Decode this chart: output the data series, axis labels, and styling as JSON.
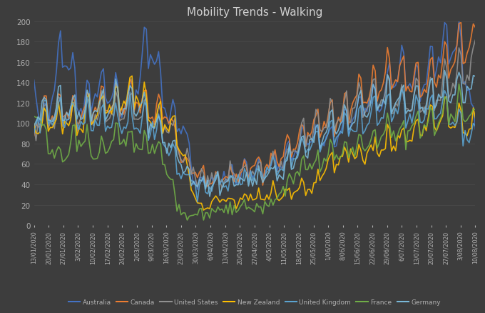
{
  "title": "Mobility Trends - Walking",
  "background_color": "#3d3d3d",
  "plot_bg_color": "#3d3d3d",
  "grid_color": "#555555",
  "text_color": "#b0b0b0",
  "title_color": "#d0d0d0",
  "ylim": [
    0,
    200
  ],
  "yticks": [
    0,
    20,
    40,
    60,
    80,
    100,
    120,
    140,
    160,
    180,
    200
  ],
  "countries": [
    "Australia",
    "Canada",
    "United States",
    "New Zealand",
    "United Kingdom",
    "France",
    "Germany"
  ],
  "colors": {
    "Australia": "#4472c4",
    "Canada": "#ed7d31",
    "United States": "#909090",
    "New Zealand": "#ffc000",
    "United Kingdom": "#5ba3d0",
    "France": "#70ad47",
    "Germany": "#7ab8d8"
  },
  "x_labels": [
    "13/01/2020",
    "20/01/2020",
    "27/01/2020",
    "3/02/2020",
    "10/02/2020",
    "17/02/2020",
    "24/02/2020",
    "2/03/2020",
    "9/03/2020",
    "16/03/2020",
    "23/03/2020",
    "30/03/2020",
    "6/04/2020",
    "13/04/2020",
    "20/04/2020",
    "27/04/2020",
    "4/05/2020",
    "11/05/2020",
    "18/05/2020",
    "25/05/2020",
    "1/06/2020",
    "8/06/2020",
    "15/06/2020",
    "22/06/2020",
    "29/06/2020",
    "6/07/2020",
    "13/07/2020",
    "20/07/2020",
    "27/07/2020",
    "3/08/2020",
    "10/08/2020"
  ],
  "n_labels": 31,
  "series_weekly": {
    "Australia": [
      158,
      112,
      167,
      122,
      125,
      130,
      115,
      135,
      168,
      108,
      98,
      42,
      44,
      46,
      50,
      52,
      56,
      65,
      78,
      85,
      82,
      92,
      112,
      118,
      128,
      148,
      132,
      152,
      172,
      162,
      82
    ],
    "Canada": [
      100,
      108,
      112,
      106,
      116,
      118,
      116,
      122,
      108,
      106,
      68,
      48,
      44,
      46,
      52,
      56,
      60,
      70,
      82,
      95,
      102,
      106,
      122,
      132,
      144,
      142,
      136,
      142,
      156,
      166,
      174
    ],
    "United States": [
      100,
      104,
      106,
      104,
      106,
      110,
      112,
      108,
      102,
      94,
      72,
      46,
      46,
      48,
      50,
      52,
      54,
      64,
      80,
      94,
      100,
      108,
      116,
      120,
      122,
      116,
      118,
      124,
      136,
      144,
      154
    ],
    "New Zealand": [
      100,
      100,
      100,
      100,
      108,
      114,
      122,
      128,
      106,
      100,
      75,
      25,
      22,
      22,
      24,
      27,
      30,
      32,
      36,
      38,
      58,
      64,
      66,
      72,
      78,
      82,
      88,
      98,
      102,
      98,
      92
    ],
    "United Kingdom": [
      100,
      104,
      106,
      100,
      100,
      100,
      100,
      102,
      95,
      78,
      52,
      38,
      38,
      40,
      44,
      48,
      52,
      58,
      70,
      80,
      88,
      92,
      98,
      104,
      110,
      112,
      108,
      108,
      110,
      98,
      82
    ],
    "France": [
      122,
      78,
      66,
      88,
      68,
      80,
      86,
      80,
      74,
      58,
      13,
      13,
      13,
      14,
      14,
      16,
      22,
      32,
      54,
      56,
      64,
      68,
      74,
      80,
      90,
      90,
      94,
      100,
      106,
      112,
      94
    ],
    "Germany": [
      106,
      108,
      112,
      108,
      112,
      114,
      116,
      114,
      102,
      80,
      58,
      40,
      40,
      40,
      42,
      44,
      48,
      54,
      70,
      84,
      94,
      100,
      108,
      116,
      120,
      118,
      120,
      122,
      126,
      130,
      128
    ]
  }
}
